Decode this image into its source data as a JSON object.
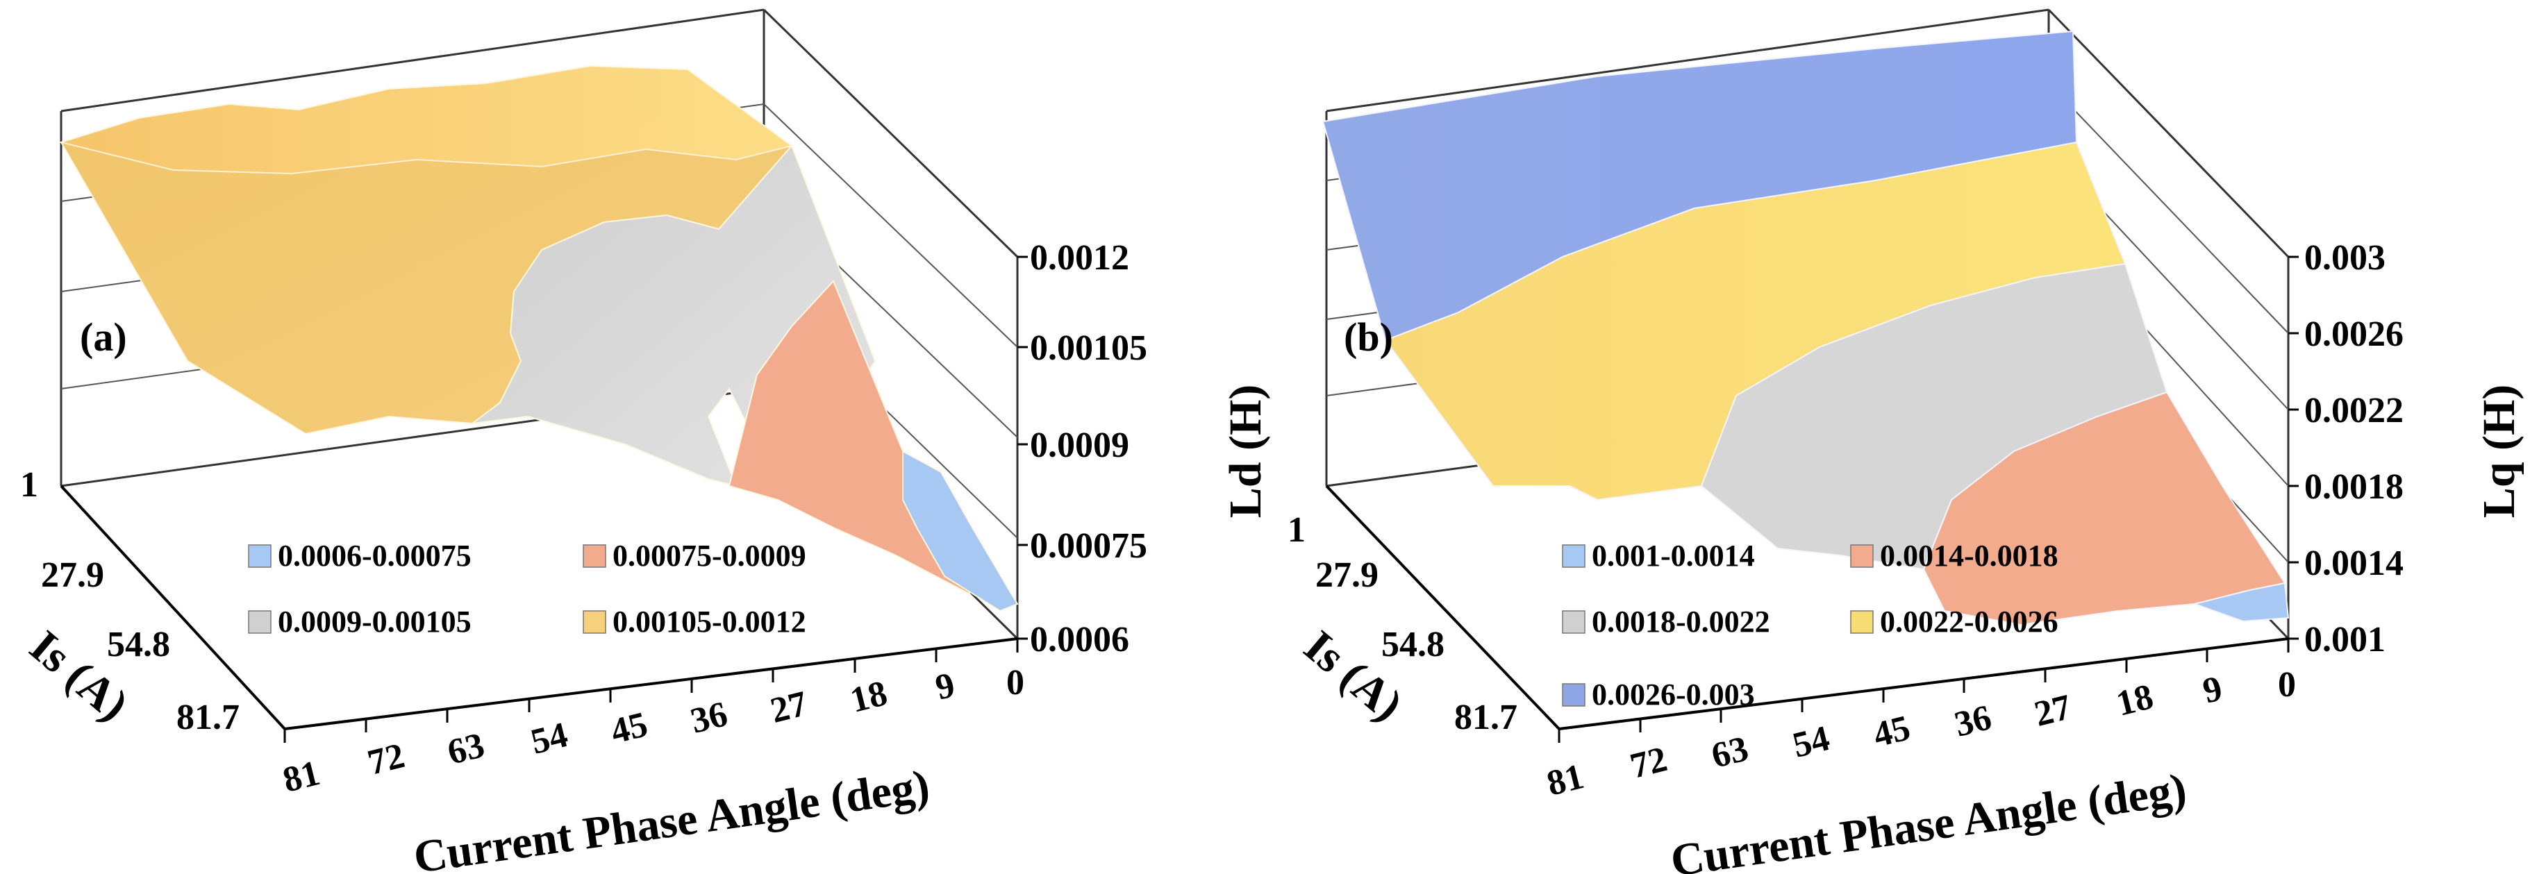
{
  "chart_data": [
    {
      "type": "surface3d",
      "panel_label": "(a)",
      "zlabel": "Ld (H)",
      "xlabel": "Current Phase Angle (deg)",
      "ylabel": "Is (A)",
      "x_ticks": [
        "81",
        "72",
        "63",
        "54",
        "45",
        "36",
        "27",
        "18",
        "9",
        "0"
      ],
      "y_ticks": [
        "1",
        "27.9",
        "54.8",
        "81.7"
      ],
      "z_ticks": [
        "0.0006",
        "0.00075",
        "0.0009",
        "0.00105",
        "0.0012"
      ],
      "zlim": [
        0.0006,
        0.0012
      ],
      "legend": [
        {
          "label": "0.0006-0.00075",
          "color": "#a8c8f4"
        },
        {
          "label": "0.00075-0.0009",
          "color": "#f2ab8c"
        },
        {
          "label": "0.0009-0.00105",
          "color": "#d0d0d0"
        },
        {
          "label": "0.00105-0.0012",
          "color": "#f6d07a"
        }
      ]
    },
    {
      "type": "surface3d",
      "panel_label": "(b)",
      "zlabel": "Lq (H)",
      "xlabel": "Current Phase Angle (deg)",
      "ylabel": "Is (A)",
      "x_ticks": [
        "81",
        "72",
        "63",
        "54",
        "45",
        "36",
        "27",
        "18",
        "9",
        "0"
      ],
      "y_ticks": [
        "1",
        "27.9",
        "54.8",
        "81.7"
      ],
      "z_ticks": [
        "0.001",
        "0.0014",
        "0.0018",
        "0.0022",
        "0.0026",
        "0.003"
      ],
      "zlim": [
        0.001,
        0.003
      ],
      "legend": [
        {
          "label": "0.001-0.0014",
          "color": "#a8c8f4"
        },
        {
          "label": "0.0014-0.0018",
          "color": "#f2ab8c"
        },
        {
          "label": "0.0018-0.0022",
          "color": "#d0d0d0"
        },
        {
          "label": "0.0022-0.0026",
          "color": "#f8dc74"
        },
        {
          "label": "0.0026-0.003",
          "color": "#8ea6e6"
        }
      ]
    }
  ]
}
